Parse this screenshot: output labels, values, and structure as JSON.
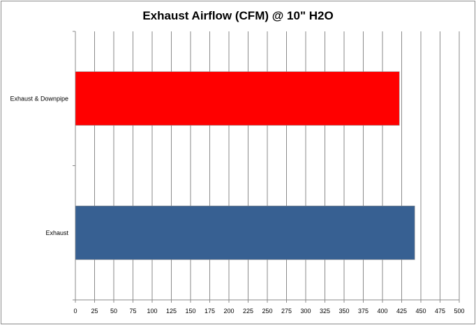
{
  "chart_data": {
    "type": "bar",
    "orientation": "horizontal",
    "title": "Exhaust Airflow (CFM) @ 10\" H2O",
    "categories": [
      "Exhaust & Downpipe",
      "Exhaust"
    ],
    "values": [
      422,
      442
    ],
    "colors": [
      "#ff0000",
      "#376092"
    ],
    "xlabel": "",
    "ylabel": "",
    "xlim": [
      0,
      500
    ],
    "xticks": [
      0,
      25,
      50,
      75,
      100,
      125,
      150,
      175,
      200,
      225,
      250,
      275,
      300,
      325,
      350,
      375,
      400,
      425,
      450,
      475,
      500
    ],
    "grid": "vertical",
    "legend": "none"
  }
}
